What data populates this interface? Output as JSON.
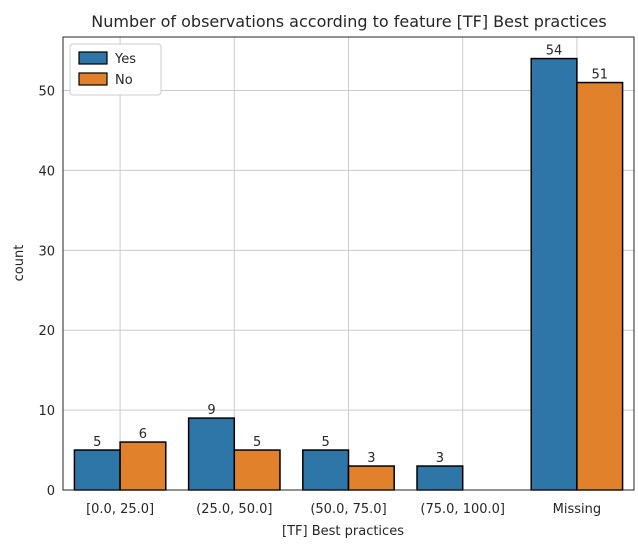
{
  "chart_data": {
    "type": "bar",
    "title": "Number of observations according to feature [TF] Best practices",
    "xlabel": "[TF] Best practices",
    "ylabel": "count",
    "categories": [
      "[0.0, 25.0]",
      "(25.0, 50.0]",
      "(50.0, 75.0]",
      "(75.0, 100.0]",
      "Missing"
    ],
    "series": [
      {
        "name": "Yes",
        "color": "#2e75a8",
        "values": [
          5,
          9,
          5,
          3,
          54
        ]
      },
      {
        "name": "No",
        "color": "#e1812c",
        "values": [
          6,
          5,
          3,
          0,
          51
        ]
      }
    ],
    "ylim": [
      0,
      56.7
    ],
    "yticks": [
      0,
      10,
      20,
      30,
      40,
      50
    ],
    "grid": true,
    "legend": "top-left",
    "data_labels": true
  }
}
